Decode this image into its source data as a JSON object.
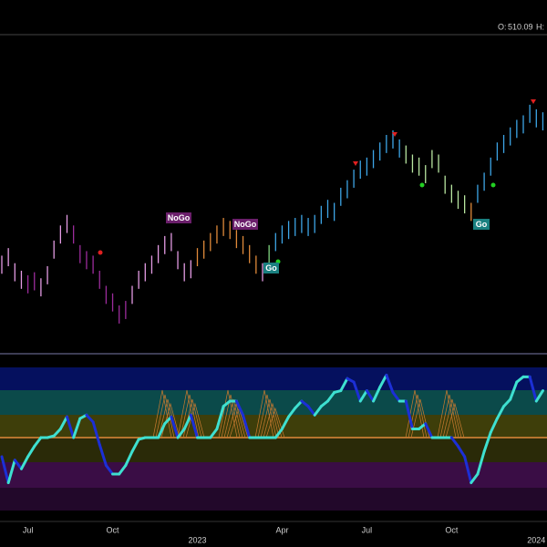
{
  "chart_data": {
    "type": "ohlc",
    "open_label": "O:",
    "open": 510.09,
    "high_label": "H:",
    "categories": [
      null,
      null,
      null,
      null,
      "Jul",
      null,
      null,
      null,
      null,
      null,
      null,
      null,
      null,
      null,
      null,
      null,
      null,
      "Oct",
      null,
      null,
      null,
      null,
      null,
      null,
      null,
      null,
      null,
      null,
      null,
      null,
      "2023",
      null,
      null,
      null,
      null,
      null,
      null,
      null,
      null,
      null,
      null,
      null,
      null,
      "Apr",
      null,
      null,
      null,
      null,
      null,
      null,
      null,
      null,
      null,
      null,
      null,
      null,
      "Jul",
      null,
      null,
      null,
      null,
      null,
      null,
      null,
      null,
      null,
      null,
      null,
      null,
      "Oct",
      null,
      null,
      null,
      null,
      null,
      null,
      null,
      null,
      null,
      null,
      null,
      null,
      "2024",
      null
    ],
    "low": [
      399,
      404,
      394,
      389,
      386,
      388,
      384,
      392,
      409,
      419,
      426,
      419,
      406,
      402,
      399,
      389,
      379,
      374,
      366,
      369,
      379,
      389,
      394,
      399,
      406,
      412,
      414,
      402,
      394,
      396,
      404,
      409,
      414,
      419,
      424,
      422,
      416,
      412,
      406,
      399,
      394,
      406,
      414,
      419,
      422,
      424,
      426,
      424,
      426,
      432,
      436,
      434,
      444,
      449,
      456,
      462,
      464,
      469,
      474,
      479,
      482,
      476,
      472,
      466,
      464,
      459,
      469,
      466,
      452,
      446,
      442,
      439,
      434,
      446,
      454,
      464,
      474,
      479,
      484,
      489,
      492,
      499,
      496,
      494
    ],
    "high": [
      411,
      416,
      406,
      401,
      398,
      400,
      396,
      404,
      421,
      431,
      438,
      431,
      418,
      414,
      411,
      401,
      391,
      386,
      378,
      381,
      391,
      401,
      406,
      411,
      418,
      424,
      426,
      414,
      406,
      408,
      416,
      421,
      426,
      431,
      436,
      434,
      428,
      424,
      418,
      411,
      406,
      418,
      426,
      431,
      434,
      436,
      438,
      436,
      438,
      444,
      448,
      446,
      456,
      461,
      468,
      474,
      476,
      481,
      486,
      491,
      494,
      488,
      484,
      478,
      476,
      471,
      481,
      478,
      464,
      458,
      454,
      451,
      446,
      458,
      466,
      476,
      486,
      491,
      496,
      501,
      504,
      511,
      508,
      506
    ],
    "bar_colors": [
      "#e39be3",
      "#e39be3",
      "#e39be3",
      "#e39be3",
      "#9c2c9c",
      "#9c2c9c",
      "#e39be3",
      "#e39be3",
      "#e39be3",
      "#e39be3",
      "#e39be3",
      "#9c2c9c",
      "#9c2c9c",
      "#9c2c9c",
      "#9c2c9c",
      "#9c2c9c",
      "#9c2c9c",
      "#9c2c9c",
      "#9c2c9c",
      "#9c2c9c",
      "#e39be3",
      "#e39be3",
      "#e39be3",
      "#e39be3",
      "#e39be3",
      "#e39be3",
      "#e39be3",
      "#e39be3",
      "#e39be3",
      "#e39be3",
      "#e08a3a",
      "#e08a3a",
      "#e08a3a",
      "#e08a3a",
      "#e08a3a",
      "#e08a3a",
      "#e08a3a",
      "#e08a3a",
      "#e08a3a",
      "#e08a3a",
      "#e39be3",
      "#7fd47f",
      "#3da5e6",
      "#3da5e6",
      "#3da5e6",
      "#3da5e6",
      "#3da5e6",
      "#3da5e6",
      "#3da5e6",
      "#3da5e6",
      "#3da5e6",
      "#3da5e6",
      "#3da5e6",
      "#3da5e6",
      "#3da5e6",
      "#3da5e6",
      "#3da5e6",
      "#3da5e6",
      "#3da5e6",
      "#3da5e6",
      "#3da5e6",
      "#3da5e6",
      "#b8e6a0",
      "#b8e6a0",
      "#b8e6a0",
      "#b8e6a0",
      "#b8e6a0",
      "#b8e6a0",
      "#b8e6a0",
      "#b8e6a0",
      "#b8e6a0",
      "#b8e6a0",
      "#e08a3a",
      "#3da5e6",
      "#3da5e6",
      "#3da5e6",
      "#3da5e6",
      "#3da5e6",
      "#3da5e6",
      "#3da5e6",
      "#3da5e6",
      "#3da5e6",
      "#3da5e6",
      "#3da5e6"
    ],
    "ylim": [
      346,
      520
    ],
    "annotations": [
      "NoGo",
      "NoGo",
      "Go",
      "Go"
    ],
    "oscillator": [
      -1.1,
      -2.6,
      -1.3,
      -1.8,
      -1.1,
      -0.5,
      0,
      0,
      0.1,
      0.5,
      1.2,
      0,
      1.1,
      1.3,
      0.9,
      -0.4,
      -1.6,
      -2.1,
      -2.1,
      -1.6,
      -0.8,
      -0.1,
      0,
      0,
      0,
      0.8,
      1.2,
      0,
      0.5,
      1.3,
      0,
      0,
      0,
      0.5,
      1.8,
      2.1,
      2.1,
      1.3,
      0,
      0,
      0,
      0,
      0,
      0.5,
      1.2,
      1.7,
      2.1,
      1.8,
      1.3,
      1.8,
      2.1,
      2.6,
      2.7,
      3.4,
      3.2,
      2.1,
      2.7,
      2.1,
      2.9,
      3.6,
      2.6,
      2.1,
      2.1,
      0.5,
      0.5,
      0.8,
      0,
      0,
      0,
      0,
      -0.5,
      -1.1,
      -2.6,
      -2.1,
      -0.8,
      0.3,
      1.1,
      1.8,
      2.2,
      3.2,
      3.5,
      3.5,
      2.1,
      2.7
    ],
    "oscillator_ylim": [
      -4.2,
      4.2
    ],
    "oscillator_color": "#3ee0d0",
    "oscillator_fall_color": "#1c2fd6"
  }
}
